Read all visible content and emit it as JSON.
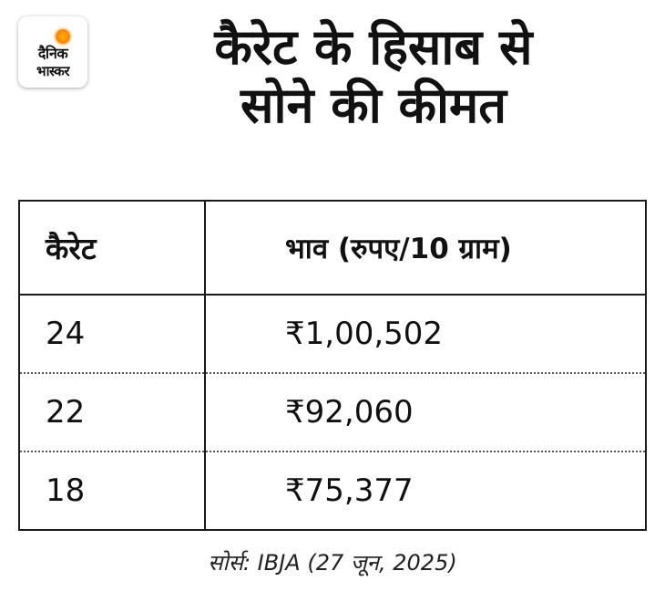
{
  "logo": {
    "line1": "दैनिक",
    "line2": "भास्कर",
    "accent_color": "#ff8a00"
  },
  "title": {
    "line1": "कैरेट के हिसाब से",
    "line2": "सोने की कीमत"
  },
  "table": {
    "headers": [
      "कैरेट",
      "भाव (रुपए/10 ग्राम)"
    ],
    "rows": [
      {
        "carat": "24",
        "price": "₹1,00,502"
      },
      {
        "carat": "22",
        "price": "₹92,060"
      },
      {
        "carat": "18",
        "price": "₹75,377"
      }
    ]
  },
  "source": "सोर्स: IBJA (27 जून, 2025)"
}
